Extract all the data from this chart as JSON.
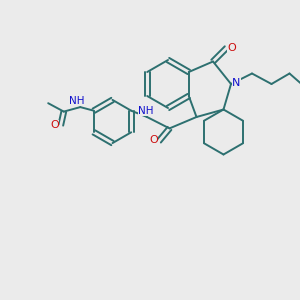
{
  "bg_color": "#ebebeb",
  "bond_color": "#2d7070",
  "N_color": "#1010cc",
  "O_color": "#cc1010",
  "bond_width": 1.4,
  "figsize": [
    3.0,
    3.0
  ],
  "dpi": 100,
  "xlim": [
    0,
    10
  ],
  "ylim": [
    0,
    10
  ]
}
